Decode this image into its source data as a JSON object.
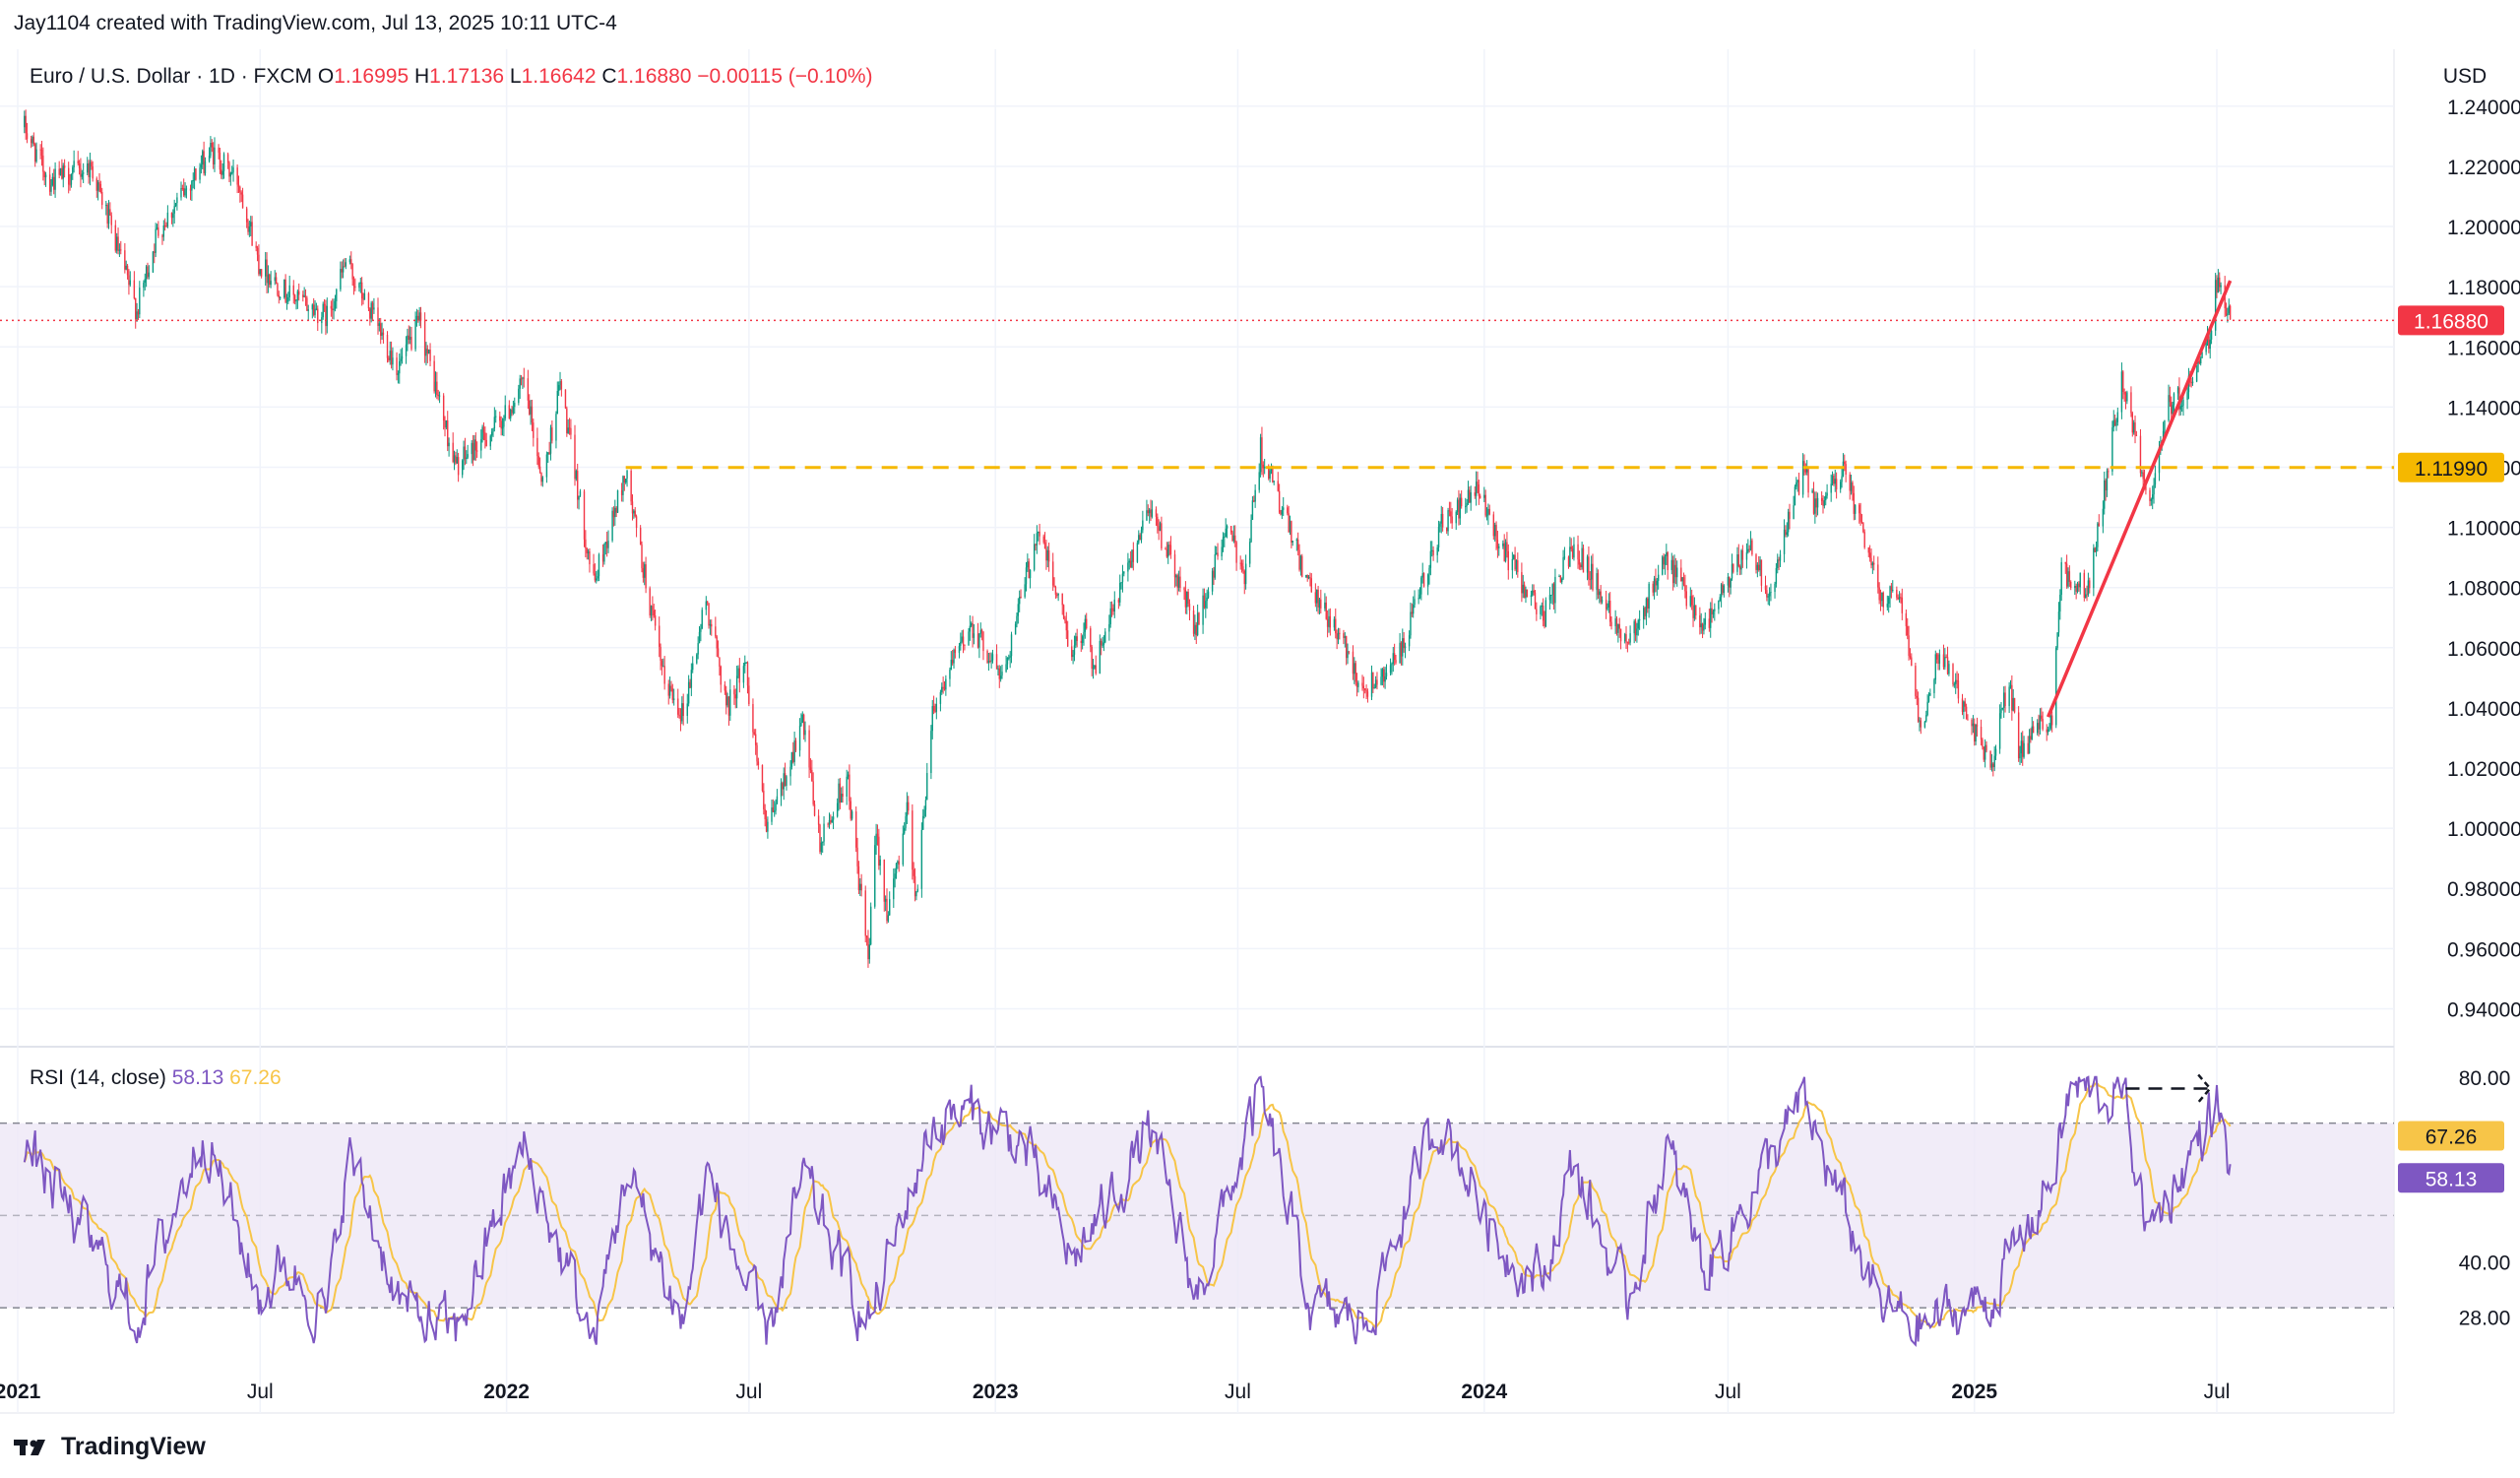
{
  "header": {
    "attribution": "Jay1104 created with TradingView.com, Jul 13, 2025 10:11 UTC-4"
  },
  "footer": {
    "brand": "TradingView"
  },
  "colors": {
    "up": "#089981",
    "down": "#f23645",
    "level": "#f5b800",
    "trend": "#f23645",
    "rsi": "#7e57c2",
    "rsi_ma": "#f7c548",
    "rsi_band": "#ede7f6",
    "grid": "#f0f3fa"
  },
  "chart_data": {
    "type": "candlestick",
    "instrument": {
      "name": "Euro / U.S. Dollar",
      "interval": "1D",
      "source": "FXCM",
      "currency": "USD"
    },
    "ohlc_labels": {
      "open_key": "O",
      "open": "1.16995",
      "high_key": "H",
      "high": "1.17136",
      "low_key": "L",
      "low": "1.16642",
      "close_key": "C",
      "close": "1.16880",
      "change": "−0.00115 (−0.10%)"
    },
    "x_range": [
      "2021-01-01",
      "2025-10-31"
    ],
    "ylim": [
      0.93,
      1.255
    ],
    "y_ticks": [
      "1.24000",
      "1.22000",
      "1.20000",
      "1.18000",
      "1.16000",
      "1.14000",
      "1.12000",
      "1.10000",
      "1.08000",
      "1.06000",
      "1.04000",
      "1.02000",
      "1.00000",
      "0.98000",
      "0.96000",
      "0.94000"
    ],
    "x_ticks": [
      {
        "date": "2021-01-01",
        "label": "2021",
        "bold": true
      },
      {
        "date": "2021-07-01",
        "label": "Jul",
        "bold": false
      },
      {
        "date": "2022-01-01",
        "label": "2022",
        "bold": true
      },
      {
        "date": "2022-07-01",
        "label": "Jul",
        "bold": false
      },
      {
        "date": "2023-01-01",
        "label": "2023",
        "bold": true
      },
      {
        "date": "2023-07-01",
        "label": "Jul",
        "bold": false
      },
      {
        "date": "2024-01-01",
        "label": "2024",
        "bold": true
      },
      {
        "date": "2024-07-01",
        "label": "Jul",
        "bold": false
      },
      {
        "date": "2025-01-01",
        "label": "2025",
        "bold": true
      },
      {
        "date": "2025-07-01",
        "label": "Jul",
        "bold": false
      }
    ],
    "price_path": [
      [
        "2021-01-06",
        1.233
      ],
      [
        "2021-01-25",
        1.215
      ],
      [
        "2021-02-25",
        1.22
      ],
      [
        "2021-03-31",
        1.172
      ],
      [
        "2021-04-15",
        1.198
      ],
      [
        "2021-05-25",
        1.225
      ],
      [
        "2021-06-15",
        1.215
      ],
      [
        "2021-06-30",
        1.188
      ],
      [
        "2021-07-20",
        1.178
      ],
      [
        "2021-08-20",
        1.17
      ],
      [
        "2021-09-03",
        1.188
      ],
      [
        "2021-10-12",
        1.153
      ],
      [
        "2021-10-28",
        1.168
      ],
      [
        "2021-11-24",
        1.12
      ],
      [
        "2021-12-31",
        1.137
      ],
      [
        "2022-01-14",
        1.148
      ],
      [
        "2022-01-28",
        1.115
      ],
      [
        "2022-02-10",
        1.148
      ],
      [
        "2022-03-07",
        1.081
      ],
      [
        "2022-03-31",
        1.118
      ],
      [
        "2022-04-28",
        1.05
      ],
      [
        "2022-05-13",
        1.038
      ],
      [
        "2022-05-30",
        1.076
      ],
      [
        "2022-06-15",
        1.04
      ],
      [
        "2022-06-28",
        1.056
      ],
      [
        "2022-07-14",
        0.998
      ],
      [
        "2022-08-10",
        1.035
      ],
      [
        "2022-08-23",
        0.994
      ],
      [
        "2022-09-12",
        1.018
      ],
      [
        "2022-09-28",
        0.956
      ],
      [
        "2022-10-04",
        0.998
      ],
      [
        "2022-10-13",
        0.97
      ],
      [
        "2022-10-27",
        1.008
      ],
      [
        "2022-11-03",
        0.976
      ],
      [
        "2022-11-15",
        1.04
      ],
      [
        "2022-12-14",
        1.068
      ],
      [
        "2023-01-06",
        1.05
      ],
      [
        "2023-02-02",
        1.1
      ],
      [
        "2023-02-28",
        1.058
      ],
      [
        "2023-03-10",
        1.07
      ],
      [
        "2023-03-15",
        1.052
      ],
      [
        "2023-04-26",
        1.108
      ],
      [
        "2023-05-31",
        1.066
      ],
      [
        "2023-06-22",
        1.1
      ],
      [
        "2023-07-06",
        1.085
      ],
      [
        "2023-07-18",
        1.126
      ],
      [
        "2023-08-25",
        1.078
      ],
      [
        "2023-09-14",
        1.065
      ],
      [
        "2023-10-03",
        1.046
      ],
      [
        "2023-10-31",
        1.058
      ],
      [
        "2023-11-29",
        1.1
      ],
      [
        "2023-12-28",
        1.112
      ],
      [
        "2024-01-12",
        1.095
      ],
      [
        "2024-02-14",
        1.07
      ],
      [
        "2024-03-08",
        1.095
      ],
      [
        "2024-04-16",
        1.062
      ],
      [
        "2024-05-16",
        1.089
      ],
      [
        "2024-06-14",
        1.067
      ],
      [
        "2024-07-17",
        1.095
      ],
      [
        "2024-08-01",
        1.078
      ],
      [
        "2024-08-26",
        1.12
      ],
      [
        "2024-09-05",
        1.105
      ],
      [
        "2024-09-25",
        1.12
      ],
      [
        "2024-10-23",
        1.077
      ],
      [
        "2024-11-06",
        1.08
      ],
      [
        "2024-11-22",
        1.034
      ],
      [
        "2024-12-06",
        1.06
      ],
      [
        "2025-01-13",
        1.02
      ],
      [
        "2025-01-27",
        1.05
      ],
      [
        "2025-02-03",
        1.025
      ],
      [
        "2025-02-28",
        1.038
      ],
      [
        "2025-03-07",
        1.085
      ],
      [
        "2025-03-27",
        1.079
      ],
      [
        "2025-04-21",
        1.15
      ],
      [
        "2025-05-12",
        1.108
      ],
      [
        "2025-05-26",
        1.14
      ],
      [
        "2025-06-05",
        1.144
      ],
      [
        "2025-06-24",
        1.16
      ],
      [
        "2025-07-01",
        1.182
      ],
      [
        "2025-07-11",
        1.1688
      ]
    ],
    "levels": [
      {
        "name": "horizontal",
        "value": 1.1199,
        "label": "1.11990",
        "from": "2022-03-31",
        "to": "2025-10-31",
        "style": "dashed"
      }
    ],
    "last_price": {
      "value": 1.1688,
      "label": "1.16880"
    },
    "trendline": {
      "from": [
        "2025-02-25",
        1.037
      ],
      "to": [
        "2025-07-11",
        1.182
      ]
    },
    "rsi": {
      "label": "RSI (14, close)",
      "value": "58.13",
      "ma_value": "67.26",
      "value_num": 58.13,
      "ma_num": 67.26,
      "ylim": [
        20,
        84
      ],
      "y_ticks": [
        "80.00",
        "40.00",
        "28.00"
      ],
      "overbought": 70,
      "middle": 50,
      "oversold": 30,
      "path": [
        [
          "2021-01-06",
          65
        ],
        [
          "2021-02-15",
          48
        ],
        [
          "2021-03-31",
          28
        ],
        [
          "2021-05-20",
          70
        ],
        [
          "2021-06-30",
          32
        ],
        [
          "2021-07-20",
          40
        ],
        [
          "2021-08-20",
          28
        ],
        [
          "2021-09-05",
          64
        ],
        [
          "2021-10-15",
          30
        ],
        [
          "2021-11-24",
          24
        ],
        [
          "2021-12-31",
          55
        ],
        [
          "2022-01-14",
          64
        ],
        [
          "2022-03-07",
          22
        ],
        [
          "2022-03-31",
          60
        ],
        [
          "2022-05-13",
          26
        ],
        [
          "2022-05-30",
          60
        ],
        [
          "2022-07-14",
          22
        ],
        [
          "2022-08-10",
          58
        ],
        [
          "2022-09-28",
          26
        ],
        [
          "2022-11-15",
          70
        ],
        [
          "2022-12-14",
          72
        ],
        [
          "2023-01-20",
          66
        ],
        [
          "2023-02-28",
          40
        ],
        [
          "2023-04-26",
          68
        ],
        [
          "2023-05-31",
          32
        ],
        [
          "2023-07-18",
          76
        ],
        [
          "2023-08-25",
          30
        ],
        [
          "2023-10-03",
          26
        ],
        [
          "2023-11-29",
          72
        ],
        [
          "2024-01-12",
          44
        ],
        [
          "2024-02-14",
          36
        ],
        [
          "2024-03-08",
          62
        ],
        [
          "2024-04-16",
          30
        ],
        [
          "2024-05-16",
          64
        ],
        [
          "2024-06-14",
          38
        ],
        [
          "2024-08-26",
          74
        ],
        [
          "2024-10-23",
          30
        ],
        [
          "2024-11-22",
          26
        ],
        [
          "2025-01-13",
          32
        ],
        [
          "2025-02-28",
          58
        ],
        [
          "2025-03-14",
          77
        ],
        [
          "2025-04-21",
          76
        ],
        [
          "2025-05-12",
          46
        ],
        [
          "2025-06-05",
          60
        ],
        [
          "2025-07-01",
          74
        ],
        [
          "2025-07-11",
          58
        ]
      ]
    }
  }
}
